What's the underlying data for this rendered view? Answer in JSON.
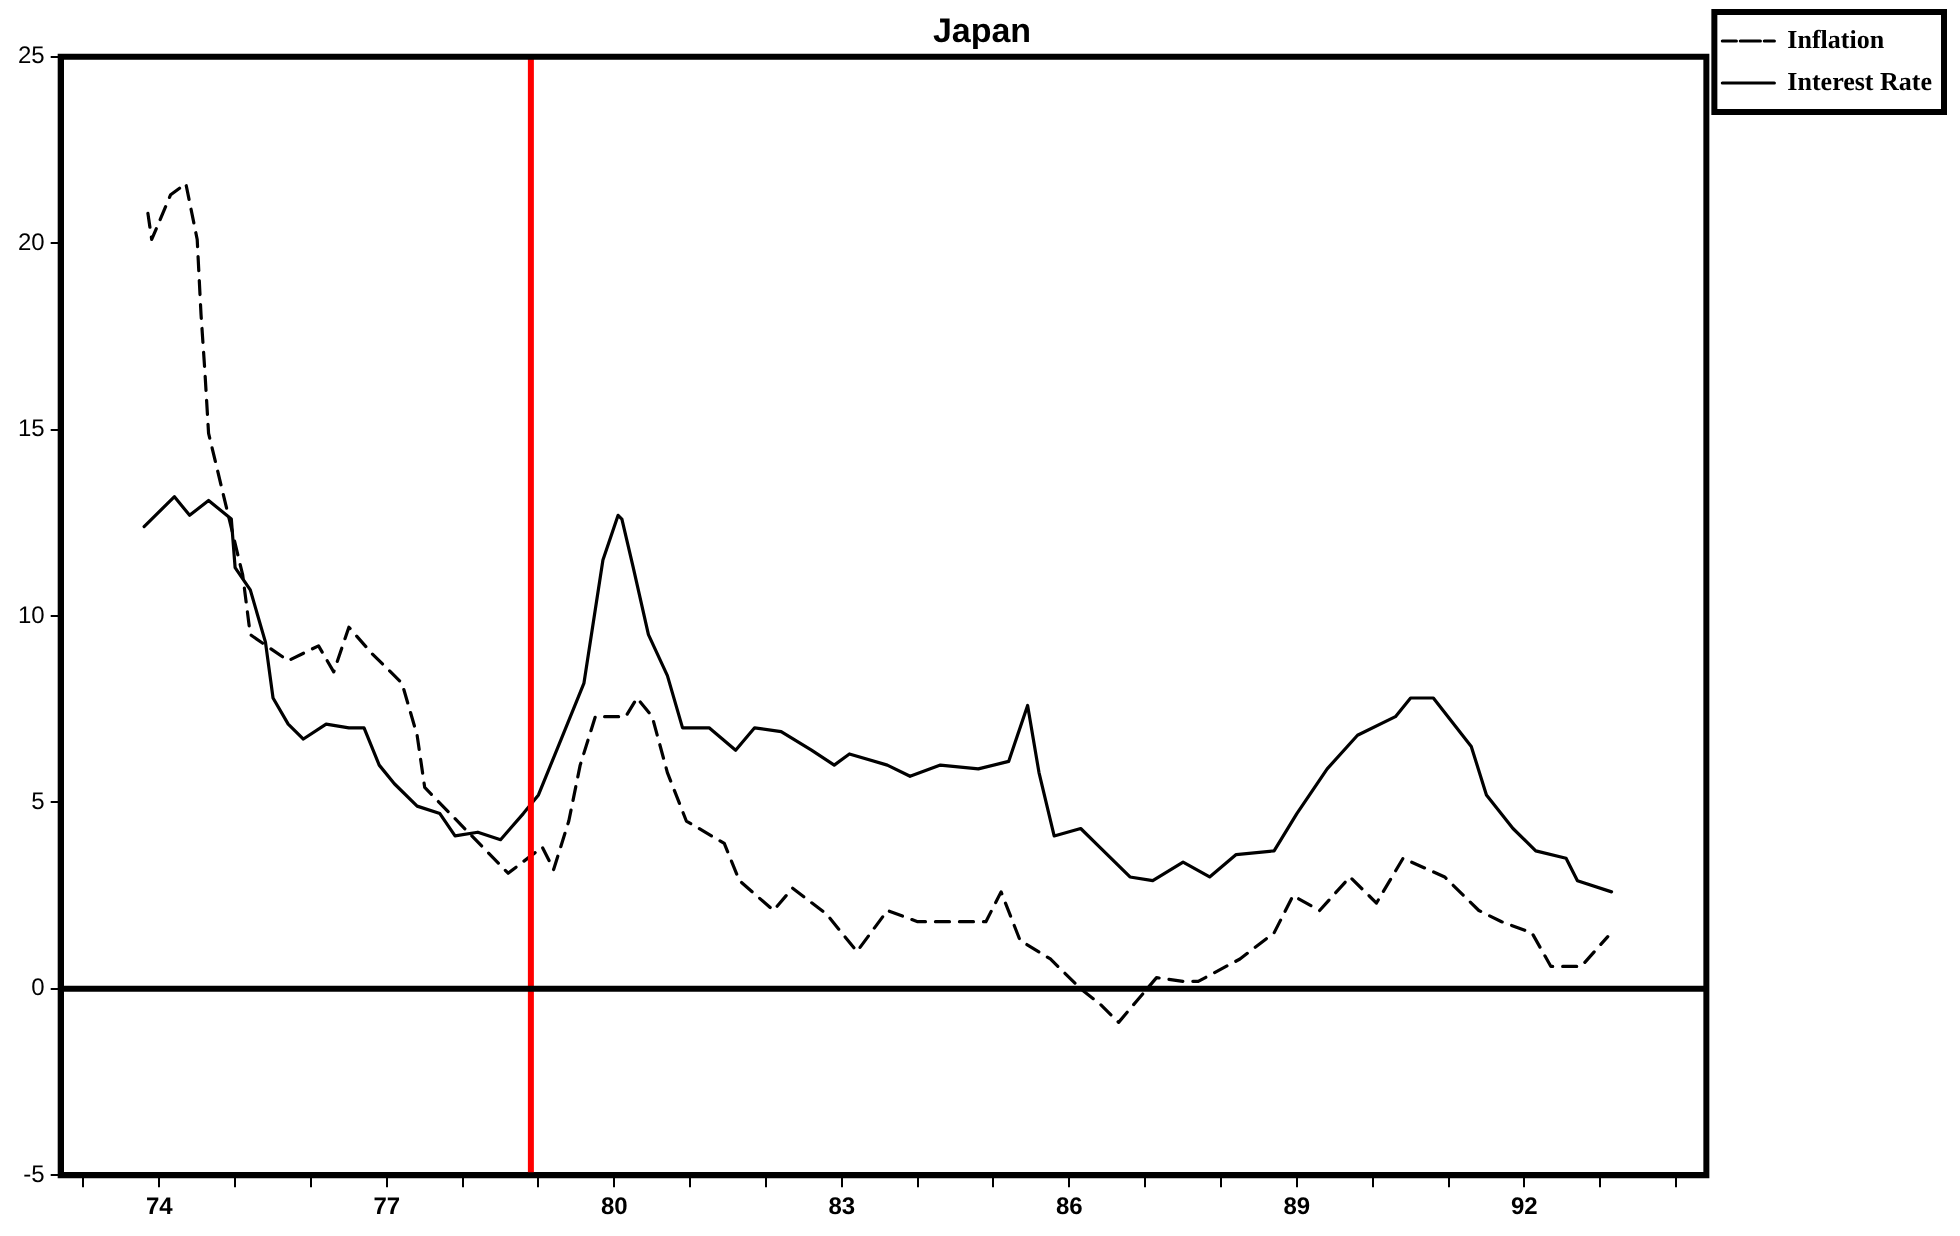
{
  "chart_data": {
    "type": "line",
    "title": "Japan",
    "xlim": [
      1972.7,
      1994.4
    ],
    "ylim": [
      -5,
      25
    ],
    "yticks": [
      -5,
      0,
      5,
      10,
      15,
      20,
      25
    ],
    "xticks": [
      {
        "value": 1973,
        "label": null
      },
      {
        "value": 1974,
        "label": "74"
      },
      {
        "value": 1975,
        "label": null
      },
      {
        "value": 1976,
        "label": null
      },
      {
        "value": 1977,
        "label": "77"
      },
      {
        "value": 1978,
        "label": null
      },
      {
        "value": 1979,
        "label": null
      },
      {
        "value": 1980,
        "label": "80"
      },
      {
        "value": 1981,
        "label": null
      },
      {
        "value": 1982,
        "label": null
      },
      {
        "value": 1983,
        "label": "83"
      },
      {
        "value": 1984,
        "label": null
      },
      {
        "value": 1985,
        "label": null
      },
      {
        "value": 1986,
        "label": "86"
      },
      {
        "value": 1987,
        "label": null
      },
      {
        "value": 1988,
        "label": null
      },
      {
        "value": 1989,
        "label": "89"
      },
      {
        "value": 1990,
        "label": null
      },
      {
        "value": 1991,
        "label": null
      },
      {
        "value": 1992,
        "label": "92"
      },
      {
        "value": 1993,
        "label": null
      },
      {
        "value": 1994,
        "label": null
      }
    ],
    "grid": false,
    "legend": "top right",
    "marker": "none",
    "ref_lines": [
      {
        "axis": "x",
        "value": 1978.9,
        "color": "#ff0000"
      },
      {
        "axis": "y",
        "value": 0,
        "color": "#000000"
      }
    ],
    "series": [
      {
        "name": "Inflation",
        "color": "#000000",
        "line_style": "dashed",
        "x": [
          1973.85,
          1973.9,
          1974.15,
          1974.35,
          1974.5,
          1974.55,
          1974.6,
          1974.65,
          1975.1,
          1975.2,
          1975.7,
          1976.1,
          1976.3,
          1976.5,
          1976.8,
          1977.2,
          1977.4,
          1977.5,
          1978.6,
          1979.05,
          1979.2,
          1979.4,
          1979.55,
          1979.75,
          1980.15,
          1980.3,
          1980.5,
          1980.7,
          1980.95,
          1981.45,
          1981.65,
          1982.1,
          1982.35,
          1982.8,
          1983.2,
          1983.6,
          1984.0,
          1984.3,
          1984.6,
          1984.9,
          1985.1,
          1985.35,
          1985.75,
          1986.15,
          1986.4,
          1986.65,
          1986.9,
          1987.15,
          1987.5,
          1987.7,
          1988.25,
          1988.7,
          1988.95,
          1989.3,
          1989.7,
          1990.05,
          1990.4,
          1990.95,
          1991.4,
          1991.7,
          1992.1,
          1992.35,
          1992.75,
          1993.1
        ],
        "values": [
          20.8,
          20.1,
          21.3,
          21.6,
          20.1,
          18.1,
          16.6,
          14.9,
          11.1,
          9.5,
          8.8,
          9.2,
          8.5,
          9.7,
          9.0,
          8.2,
          6.8,
          5.4,
          3.1,
          3.8,
          3.2,
          4.5,
          6.0,
          7.3,
          7.3,
          7.8,
          7.3,
          5.8,
          4.5,
          3.9,
          2.9,
          2.1,
          2.7,
          2.0,
          1.0,
          2.1,
          1.8,
          1.8,
          1.8,
          1.8,
          2.6,
          1.3,
          0.8,
          0.0,
          -0.4,
          -0.9,
          -0.3,
          0.3,
          0.2,
          0.2,
          0.8,
          1.5,
          2.5,
          2.1,
          3.0,
          2.3,
          3.5,
          3.0,
          2.1,
          1.8,
          1.5,
          0.6,
          0.6,
          1.4
        ]
      },
      {
        "name": "Interest Rate",
        "color": "#000000",
        "line_style": "solid",
        "x": [
          1973.8,
          1974.2,
          1974.4,
          1974.65,
          1974.95,
          1975.0,
          1975.2,
          1975.4,
          1975.5,
          1975.7,
          1975.9,
          1976.2,
          1976.5,
          1976.7,
          1976.9,
          1977.1,
          1977.4,
          1977.7,
          1977.9,
          1978.2,
          1978.5,
          1978.8,
          1979.0,
          1979.3,
          1979.6,
          1979.85,
          1980.05,
          1980.1,
          1980.25,
          1980.45,
          1980.7,
          1980.9,
          1981.25,
          1981.6,
          1981.85,
          1982.2,
          1982.6,
          1982.9,
          1983.1,
          1983.6,
          1983.9,
          1984.3,
          1984.8,
          1985.2,
          1985.45,
          1985.6,
          1985.8,
          1986.15,
          1986.4,
          1986.8,
          1987.1,
          1987.5,
          1987.85,
          1988.2,
          1988.7,
          1989.0,
          1989.4,
          1989.8,
          1990.3,
          1990.5,
          1990.8,
          1991.3,
          1991.5,
          1991.85,
          1992.15,
          1992.55,
          1992.7,
          1993.15
        ],
        "values": [
          12.4,
          13.2,
          12.7,
          13.1,
          12.6,
          11.3,
          10.7,
          9.3,
          7.8,
          7.1,
          6.7,
          7.1,
          7.0,
          7.0,
          6.0,
          5.5,
          4.9,
          4.7,
          4.1,
          4.2,
          4.0,
          4.7,
          5.2,
          6.7,
          8.2,
          11.5,
          12.7,
          12.6,
          11.3,
          9.5,
          8.4,
          7.0,
          7.0,
          6.4,
          7.0,
          6.9,
          6.4,
          6.0,
          6.3,
          6.0,
          5.7,
          6.0,
          5.9,
          6.1,
          7.6,
          5.8,
          4.1,
          4.3,
          3.8,
          3.0,
          2.9,
          3.4,
          3.0,
          3.6,
          3.7,
          4.7,
          5.9,
          6.8,
          7.3,
          7.8,
          7.8,
          6.5,
          5.2,
          4.3,
          3.7,
          3.5,
          2.9,
          2.6
        ]
      }
    ]
  }
}
